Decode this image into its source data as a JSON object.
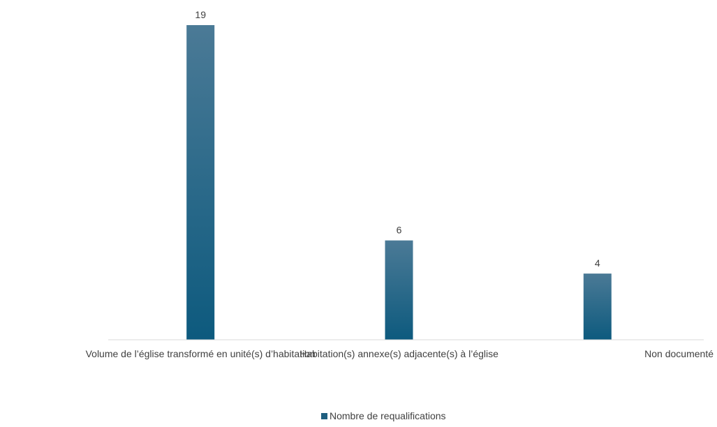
{
  "chart_data": {
    "type": "bar",
    "categories": [
      "Volume de l’église transformé en unité(s) d’habitation",
      "Habitation(s) annexe(s) adjacente(s) à l’église",
      "Non documenté"
    ],
    "series": [
      {
        "name": "Nombre de requalifications",
        "values": [
          19,
          6,
          4
        ],
        "color": "#1f5f80"
      }
    ],
    "data_labels": [
      "19",
      "6",
      "4"
    ],
    "ylim": [
      0,
      19
    ],
    "grid": false,
    "legend": {
      "position": "bottom",
      "entries": [
        "Nombre de requalifications"
      ]
    },
    "colors": {
      "bar_top": "#4b7a96",
      "bar_bottom": "#0d5a7e",
      "axis": "#d9d9d9",
      "text": "#404040"
    }
  }
}
